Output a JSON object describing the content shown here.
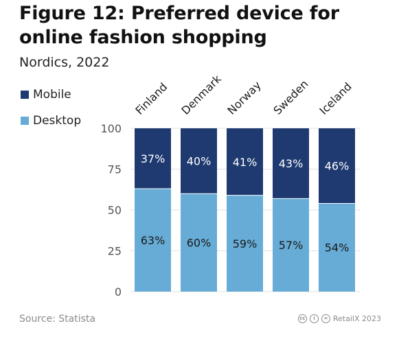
{
  "title": "Figure 12: Preferred device for online fashion shopping",
  "subtitle": "Nordics, 2022",
  "source": "Source: Statista",
  "credit": "RetailX 2023",
  "colors": {
    "mobile": "#1e3a70",
    "desktop": "#67acd6",
    "grid": "#e2e2e2",
    "axis_text": "#555555"
  },
  "chart_data": {
    "type": "bar",
    "stacked": true,
    "categories": [
      "Finland",
      "Denmark",
      "Norway",
      "Sweden",
      "Iceland"
    ],
    "series": [
      {
        "name": "Desktop",
        "values": [
          63,
          60,
          59,
          57,
          54
        ],
        "labels": [
          "63%",
          "60%",
          "59%",
          "57%",
          "54%"
        ]
      },
      {
        "name": "Mobile",
        "values": [
          37,
          40,
          41,
          43,
          46
        ],
        "labels": [
          "37%",
          "40%",
          "41%",
          "43%",
          "46%"
        ]
      }
    ],
    "legend": [
      "Mobile",
      "Desktop"
    ],
    "legend_position": "top-left",
    "ylim": [
      0,
      100
    ],
    "yticks": [
      "0",
      "25",
      "50",
      "75",
      "100"
    ],
    "grid": true
  }
}
